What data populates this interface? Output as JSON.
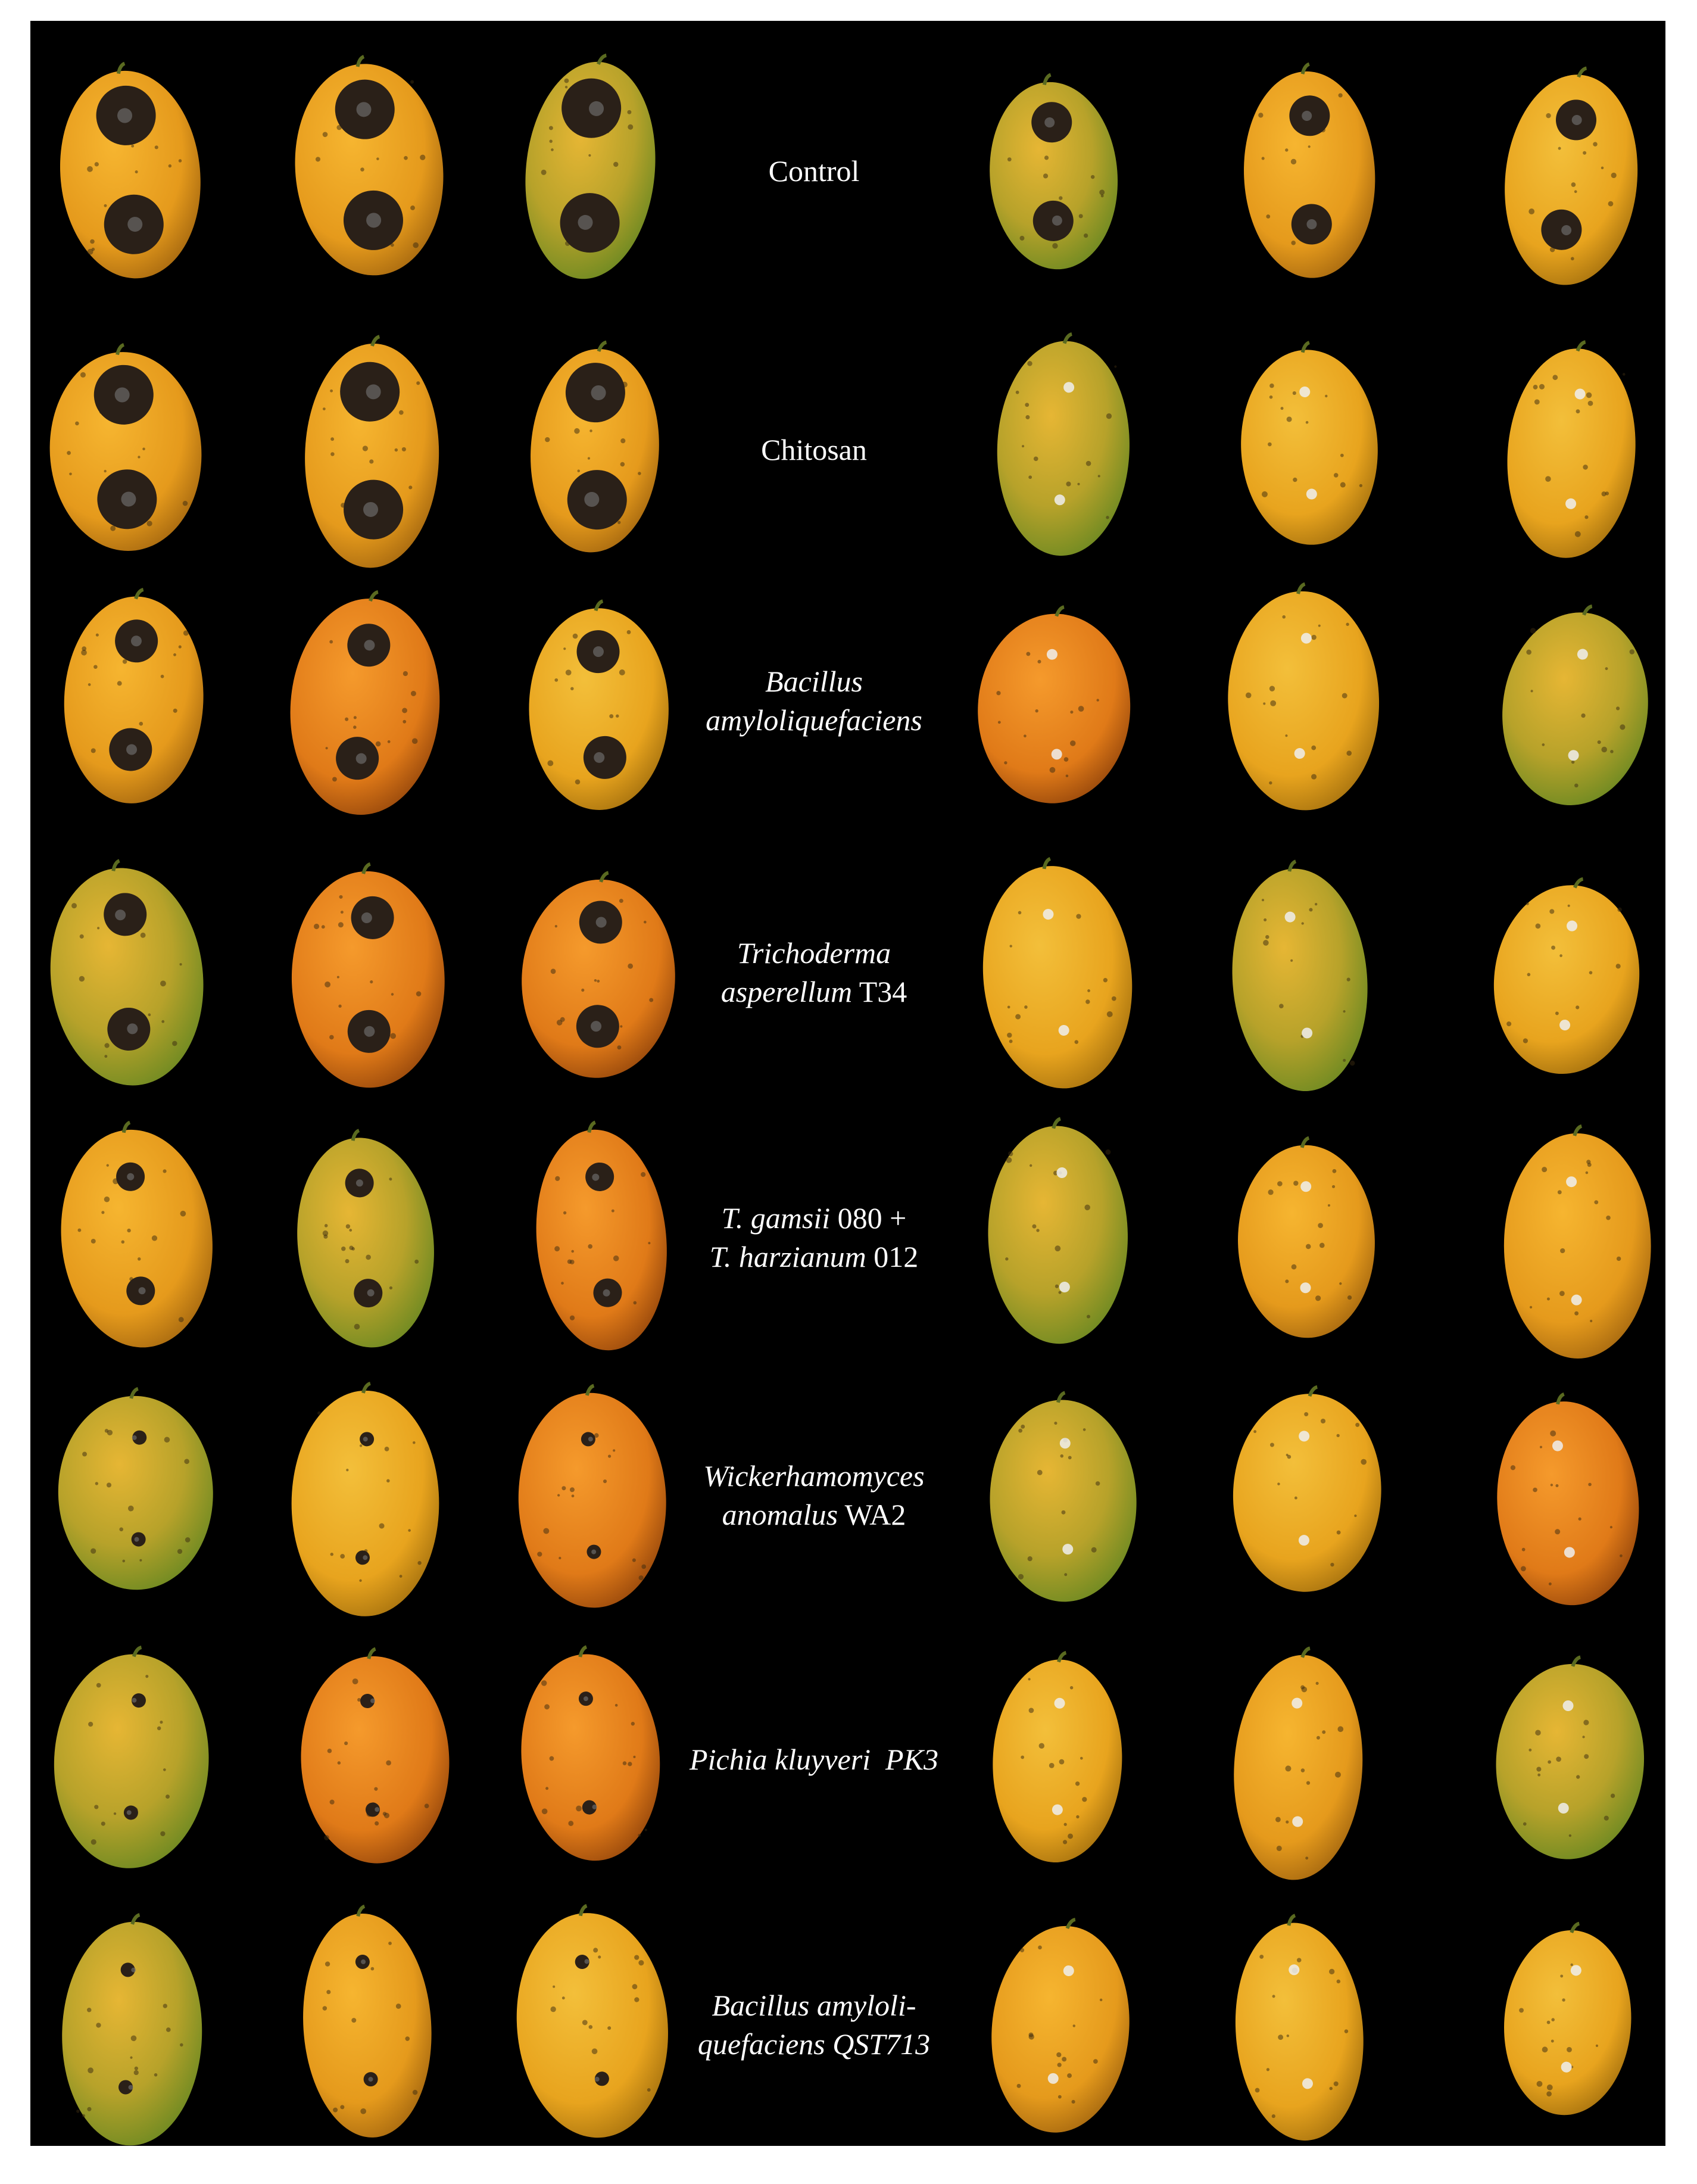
{
  "rows": [
    [
      [
        "Control"
      ]
    ],
    [
      [
        "Chitosan"
      ]
    ],
    [
      [
        "Bacillus"
      ],
      [
        "amyloliquefaciens"
      ]
    ],
    [
      [
        "Trichoderma"
      ],
      [
        "asperellum",
        " T34"
      ]
    ],
    [
      [
        "T. gamsii",
        " 080 +"
      ],
      [
        "T. harzianum",
        " 012"
      ]
    ],
    [
      [
        "Wickerhamomyces"
      ],
      [
        "anomalus",
        " WA2"
      ]
    ],
    [
      [
        "Pichia kluyveri  PK3"
      ]
    ],
    [
      [
        "Bacillus amyloli-"
      ],
      [
        "quefaciens QST713"
      ]
    ]
  ]
}
